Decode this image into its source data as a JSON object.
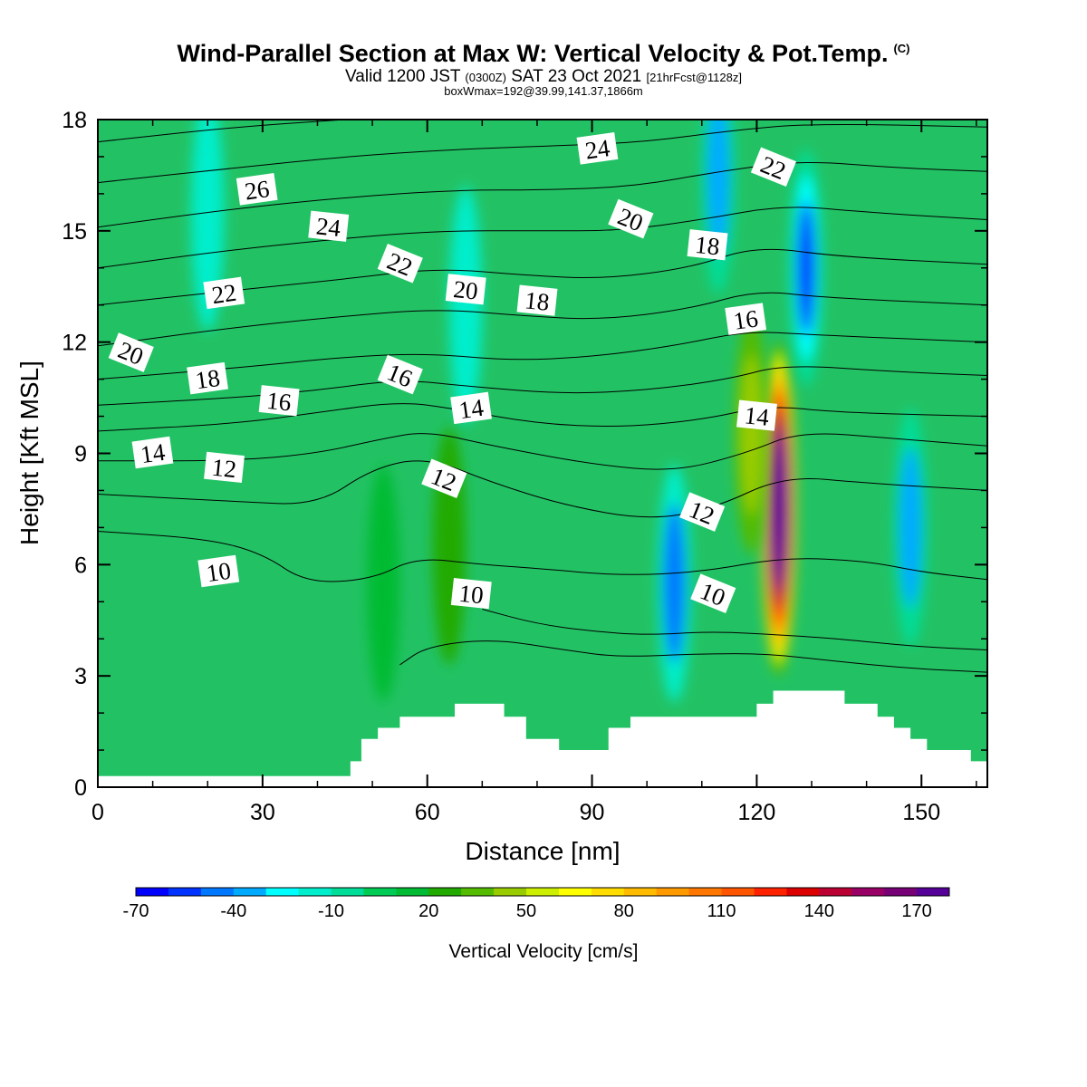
{
  "header": {
    "title": "Wind-Parallel Section at Max W: Vertical Velocity & Pot.Temp.",
    "title_mark": "(C)",
    "valid_prefix": "Valid 1200 JST",
    "valid_utc": "(0300Z)",
    "valid_date": "SAT 23 Oct 2021",
    "valid_fcst": "[21hrFcst@1128z]",
    "box_line": "boxWmax=192@39.99,141.37,1866m"
  },
  "chart_data": {
    "type": "heatmap",
    "xlabel": "Distance [nm]",
    "ylabel": "Height [Kft MSL]",
    "xlim": [
      0,
      162
    ],
    "ylim": [
      0,
      18
    ],
    "x_ticks": [
      "0",
      "30",
      "60",
      "90",
      "120",
      "150"
    ],
    "y_ticks": [
      "0",
      "3",
      "6",
      "9",
      "12",
      "15",
      "18"
    ],
    "colorbar": {
      "title": "Vertical Velocity [cm/s]",
      "labels": [
        "-70",
        "-40",
        "-10",
        "20",
        "50",
        "80",
        "110",
        "140",
        "170"
      ],
      "colors": [
        "#0000ff",
        "#0033ff",
        "#0077ff",
        "#00aaff",
        "#00ffff",
        "#00eecc",
        "#00dd99",
        "#00cc55",
        "#00bb33",
        "#22aa00",
        "#55bb00",
        "#99cc00",
        "#ccee00",
        "#ffff00",
        "#ffdd00",
        "#ffbb00",
        "#ff9900",
        "#ff7700",
        "#ff5500",
        "#ff2200",
        "#dd0000",
        "#bb0033",
        "#990066",
        "#770077",
        "#550099"
      ]
    },
    "background_color": "#22c264",
    "w_cores": [
      {
        "x": 124,
        "y": 7.5,
        "value": 192,
        "sign": "updraft"
      },
      {
        "x": 119,
        "y": 9.5,
        "value": 40,
        "sign": "updraft"
      },
      {
        "x": 64,
        "y": 6.5,
        "value": 20,
        "sign": "updraft"
      },
      {
        "x": 52,
        "y": 5.5,
        "value": 18,
        "sign": "updraft"
      },
      {
        "x": 105,
        "y": 5.5,
        "value": -45,
        "sign": "downdraft"
      },
      {
        "x": 129,
        "y": 14,
        "value": -55,
        "sign": "downdraft"
      },
      {
        "x": 113,
        "y": 16.5,
        "value": -40,
        "sign": "downdraft"
      },
      {
        "x": 148,
        "y": 7,
        "value": -35,
        "sign": "downdraft"
      },
      {
        "x": 67,
        "y": 13,
        "value": -20,
        "sign": "downdraft"
      },
      {
        "x": 20,
        "y": 15.5,
        "value": -12,
        "sign": "downdraft"
      }
    ],
    "terrain": [
      {
        "x": 0,
        "h": 0.3
      },
      {
        "x": 45,
        "h": 0.3
      },
      {
        "x": 46,
        "h": 0.7
      },
      {
        "x": 48,
        "h": 1.3
      },
      {
        "x": 51,
        "h": 1.6
      },
      {
        "x": 55,
        "h": 1.9
      },
      {
        "x": 65,
        "h": 2.25
      },
      {
        "x": 74,
        "h": 1.9
      },
      {
        "x": 78,
        "h": 1.3
      },
      {
        "x": 84,
        "h": 1.0
      },
      {
        "x": 93,
        "h": 1.6
      },
      {
        "x": 97,
        "h": 1.9
      },
      {
        "x": 120,
        "h": 2.25
      },
      {
        "x": 123,
        "h": 2.6
      },
      {
        "x": 136,
        "h": 2.25
      },
      {
        "x": 142,
        "h": 1.9
      },
      {
        "x": 145,
        "h": 1.6
      },
      {
        "x": 148,
        "h": 1.3
      },
      {
        "x": 151,
        "h": 1.0
      },
      {
        "x": 159,
        "h": 0.7
      },
      {
        "x": 162,
        "h": 0.7
      }
    ],
    "theta_contour_labels": [
      {
        "text": "26",
        "x": 29,
        "y": 16.1
      },
      {
        "text": "24",
        "x": 42,
        "y": 15.1
      },
      {
        "text": "22",
        "x": 55,
        "y": 14.1
      },
      {
        "text": "22",
        "x": 23,
        "y": 13.3
      },
      {
        "text": "20",
        "x": 67,
        "y": 13.4
      },
      {
        "text": "20",
        "x": 6,
        "y": 11.7
      },
      {
        "text": "18",
        "x": 20,
        "y": 11.0
      },
      {
        "text": "16",
        "x": 33,
        "y": 10.4
      },
      {
        "text": "16",
        "x": 55,
        "y": 11.1
      },
      {
        "text": "14",
        "x": 10,
        "y": 9.0
      },
      {
        "text": "12",
        "x": 23,
        "y": 8.6
      },
      {
        "text": "12",
        "x": 63,
        "y": 8.3
      },
      {
        "text": "14",
        "x": 68,
        "y": 10.2
      },
      {
        "text": "18",
        "x": 80,
        "y": 13.1
      },
      {
        "text": "20",
        "x": 97,
        "y": 15.3
      },
      {
        "text": "24",
        "x": 91,
        "y": 17.2
      },
      {
        "text": "18",
        "x": 111,
        "y": 14.6
      },
      {
        "text": "22",
        "x": 123,
        "y": 16.7
      },
      {
        "text": "16",
        "x": 118,
        "y": 12.6
      },
      {
        "text": "14",
        "x": 120,
        "y": 10.0
      },
      {
        "text": "12",
        "x": 110,
        "y": 7.4
      },
      {
        "text": "10",
        "x": 22,
        "y": 5.8
      },
      {
        "text": "10",
        "x": 68,
        "y": 5.2
      },
      {
        "text": "10",
        "x": 112,
        "y": 5.2
      }
    ],
    "theta_contours": [
      {
        "p": [
          [
            0,
            6.9
          ],
          [
            20,
            6.7
          ],
          [
            30,
            6.3
          ],
          [
            38,
            5.5
          ],
          [
            50,
            5.6
          ],
          [
            58,
            6.2
          ],
          [
            70,
            6.0
          ],
          [
            80,
            5.9
          ],
          [
            95,
            5.7
          ],
          [
            110,
            5.8
          ],
          [
            125,
            6.2
          ],
          [
            140,
            6.1
          ],
          [
            150,
            5.8
          ],
          [
            162,
            5.6
          ]
        ]
      },
      {
        "p": [
          [
            0,
            7.9
          ],
          [
            25,
            7.7
          ],
          [
            40,
            7.6
          ],
          [
            50,
            8.6
          ],
          [
            60,
            8.9
          ],
          [
            72,
            8.2
          ],
          [
            85,
            7.6
          ],
          [
            100,
            7.2
          ],
          [
            112,
            7.5
          ],
          [
            125,
            8.4
          ],
          [
            140,
            8.2
          ],
          [
            162,
            8.0
          ]
        ]
      },
      {
        "p": [
          [
            0,
            8.8
          ],
          [
            25,
            8.8
          ],
          [
            40,
            9.0
          ],
          [
            52,
            9.4
          ],
          [
            60,
            9.6
          ],
          [
            72,
            9.2
          ],
          [
            90,
            8.7
          ],
          [
            105,
            8.5
          ],
          [
            118,
            9.0
          ],
          [
            128,
            9.6
          ],
          [
            145,
            9.4
          ],
          [
            162,
            9.2
          ]
        ]
      },
      {
        "p": [
          [
            0,
            9.6
          ],
          [
            25,
            9.8
          ],
          [
            40,
            10.1
          ],
          [
            55,
            10.4
          ],
          [
            65,
            10.2
          ],
          [
            80,
            9.8
          ],
          [
            95,
            9.7
          ],
          [
            110,
            9.9
          ],
          [
            122,
            10.3
          ],
          [
            135,
            10.1
          ],
          [
            162,
            10.0
          ]
        ]
      },
      {
        "p": [
          [
            0,
            10.3
          ],
          [
            25,
            10.5
          ],
          [
            40,
            10.7
          ],
          [
            55,
            11.0
          ],
          [
            68,
            10.8
          ],
          [
            85,
            10.6
          ],
          [
            100,
            10.7
          ],
          [
            115,
            11.0
          ],
          [
            125,
            11.4
          ],
          [
            145,
            11.2
          ],
          [
            162,
            11.1
          ]
        ]
      },
      {
        "p": [
          [
            0,
            11.0
          ],
          [
            25,
            11.3
          ],
          [
            45,
            11.6
          ],
          [
            60,
            11.7
          ],
          [
            75,
            11.5
          ],
          [
            90,
            11.6
          ],
          [
            105,
            11.9
          ],
          [
            118,
            12.3
          ],
          [
            130,
            12.2
          ],
          [
            162,
            12.0
          ]
        ]
      },
      {
        "p": [
          [
            0,
            11.9
          ],
          [
            25,
            12.4
          ],
          [
            45,
            12.7
          ],
          [
            62,
            12.9
          ],
          [
            78,
            12.7
          ],
          [
            92,
            12.6
          ],
          [
            108,
            12.9
          ],
          [
            120,
            13.4
          ],
          [
            132,
            13.2
          ],
          [
            162,
            13.0
          ]
        ]
      },
      {
        "p": [
          [
            0,
            13.0
          ],
          [
            25,
            13.4
          ],
          [
            45,
            13.7
          ],
          [
            62,
            14.0
          ],
          [
            78,
            13.8
          ],
          [
            92,
            13.7
          ],
          [
            108,
            14.0
          ],
          [
            120,
            14.6
          ],
          [
            135,
            14.3
          ],
          [
            162,
            14.1
          ]
        ]
      },
      {
        "p": [
          [
            0,
            14.0
          ],
          [
            25,
            14.5
          ],
          [
            45,
            14.8
          ],
          [
            62,
            15.0
          ],
          [
            80,
            15.0
          ],
          [
            95,
            15.0
          ],
          [
            110,
            15.3
          ],
          [
            125,
            15.7
          ],
          [
            140,
            15.5
          ],
          [
            162,
            15.3
          ]
        ]
      },
      {
        "p": [
          [
            0,
            15.1
          ],
          [
            25,
            15.6
          ],
          [
            45,
            15.9
          ],
          [
            65,
            16.1
          ],
          [
            82,
            16.1
          ],
          [
            98,
            16.2
          ],
          [
            113,
            16.6
          ],
          [
            128,
            16.9
          ],
          [
            145,
            16.7
          ],
          [
            162,
            16.6
          ]
        ]
      },
      {
        "p": [
          [
            0,
            16.3
          ],
          [
            25,
            16.7
          ],
          [
            45,
            17.0
          ],
          [
            65,
            17.2
          ],
          [
            85,
            17.3
          ],
          [
            100,
            17.4
          ],
          [
            115,
            17.7
          ],
          [
            130,
            17.9
          ],
          [
            162,
            17.8
          ]
        ]
      },
      {
        "p": [
          [
            0,
            17.4
          ],
          [
            25,
            17.8
          ],
          [
            45,
            18.0
          ]
        ]
      },
      {
        "p": [
          [
            70,
            4.8
          ],
          [
            80,
            4.4
          ],
          [
            90,
            4.2
          ],
          [
            100,
            4.1
          ],
          [
            112,
            4.2
          ],
          [
            125,
            4.1
          ],
          [
            135,
            4.0
          ],
          [
            148,
            3.8
          ],
          [
            162,
            3.7
          ]
        ]
      },
      {
        "p": [
          [
            55,
            3.3
          ],
          [
            60,
            3.8
          ],
          [
            72,
            4.0
          ],
          [
            85,
            3.7
          ],
          [
            95,
            3.5
          ],
          [
            110,
            3.6
          ],
          [
            122,
            3.6
          ],
          [
            134,
            3.4
          ],
          [
            148,
            3.2
          ],
          [
            162,
            3.1
          ]
        ]
      }
    ]
  }
}
